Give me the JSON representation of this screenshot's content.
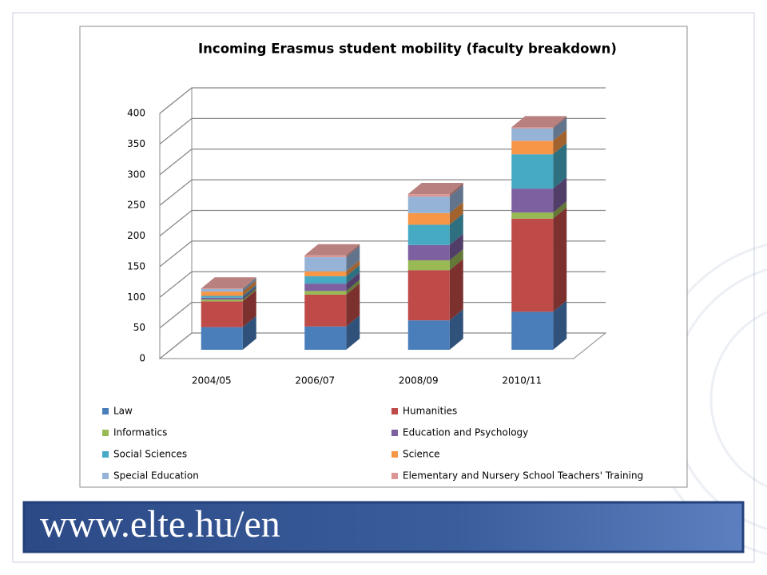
{
  "chart_data": {
    "type": "bar3d-stacked",
    "title": "Incoming Erasmus student mobility (faculty breakdown)",
    "categories": [
      "2004/05",
      "2006/07",
      "2008/09",
      "2010/11"
    ],
    "series": [
      {
        "name": "Law",
        "color": "#4a7ebb",
        "values": [
          37,
          38,
          48,
          62
        ]
      },
      {
        "name": "Humanities",
        "color": "#be4b48",
        "values": [
          42,
          52,
          82,
          152
        ]
      },
      {
        "name": "Informatics",
        "color": "#98b954",
        "values": [
          3,
          6,
          16,
          10
        ]
      },
      {
        "name": "Education and Psychology",
        "color": "#7d60a0",
        "values": [
          3,
          12,
          25,
          39
        ]
      },
      {
        "name": "Social Sciences",
        "color": "#46aac5",
        "values": [
          3,
          12,
          33,
          56
        ]
      },
      {
        "name": "Science",
        "color": "#f79646",
        "values": [
          7,
          8,
          19,
          22
        ]
      },
      {
        "name": "Special Education",
        "color": "#95b3d7",
        "values": [
          4,
          23,
          27,
          20
        ]
      },
      {
        "name": "Elementary and Nursery School Teachers' Training",
        "color": "#d99694",
        "values": [
          1,
          3,
          4,
          2
        ]
      }
    ],
    "ylim": [
      0,
      400
    ],
    "yticks": [
      0,
      50,
      100,
      150,
      200,
      250,
      300,
      350,
      400
    ],
    "grid": true
  },
  "footer": {
    "url": "www.elte.hu/en"
  }
}
